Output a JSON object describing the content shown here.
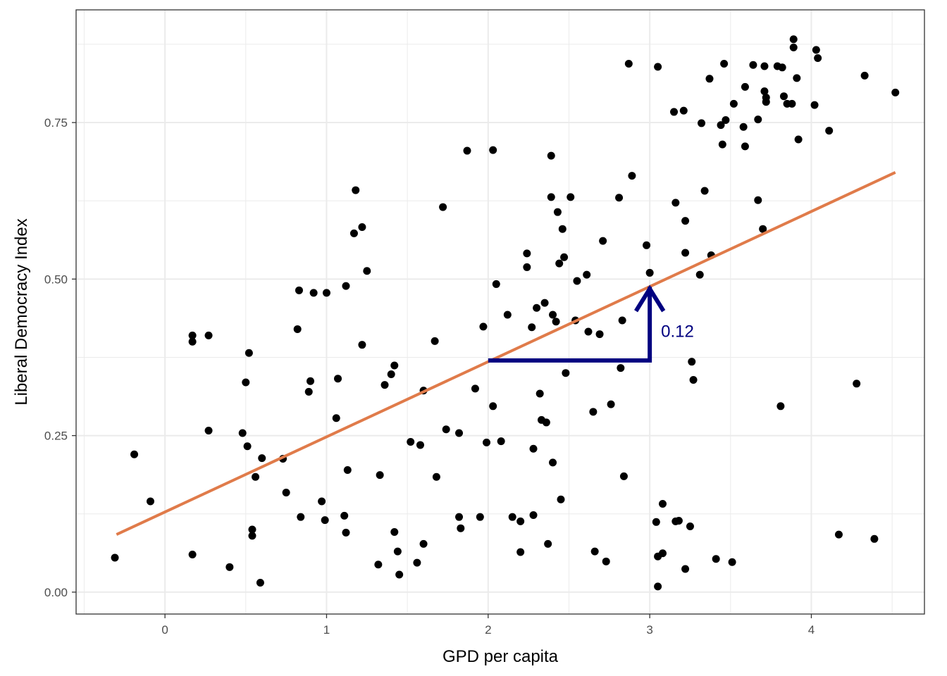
{
  "chart_data": {
    "type": "scatter",
    "xlabel": "GPD per capita",
    "ylabel": "Liberal Democracy Index",
    "xlim": [
      -0.55,
      4.7
    ],
    "ylim": [
      -0.035,
      0.93
    ],
    "x_ticks": [
      0,
      1,
      2,
      3,
      4
    ],
    "x_tick_labels": [
      "0",
      "1",
      "2",
      "3",
      "4"
    ],
    "y_ticks": [
      0,
      0.25,
      0.5,
      0.75
    ],
    "y_tick_labels": [
      "0.00",
      "0.25",
      "0.50",
      "0.75"
    ],
    "grid": true,
    "colors": {
      "points": "#000000",
      "fit_line": "#e07b4a",
      "annotation": "#000080",
      "grid": "#ebebeb"
    },
    "fit_line": {
      "intercept": 0.128,
      "slope": 0.12,
      "x_range": [
        -0.3,
        4.52
      ]
    },
    "annotation": {
      "label": "0.12",
      "run_from": [
        2,
        0.37
      ],
      "run_to": [
        3,
        0.37
      ],
      "rise_to": [
        3,
        0.49
      ]
    },
    "points": [
      [
        -0.31,
        0.055
      ],
      [
        -0.19,
        0.22
      ],
      [
        -0.09,
        0.145
      ],
      [
        0.17,
        0.41
      ],
      [
        0.17,
        0.4
      ],
      [
        0.17,
        0.06
      ],
      [
        0.27,
        0.41
      ],
      [
        0.27,
        0.258
      ],
      [
        0.4,
        0.04
      ],
      [
        0.48,
        0.254
      ],
      [
        0.5,
        0.335
      ],
      [
        0.51,
        0.233
      ],
      [
        0.52,
        0.382
      ],
      [
        0.54,
        0.1
      ],
      [
        0.54,
        0.09
      ],
      [
        0.56,
        0.184
      ],
      [
        0.59,
        0.015
      ],
      [
        0.6,
        0.214
      ],
      [
        0.73,
        0.213
      ],
      [
        0.75,
        0.159
      ],
      [
        0.82,
        0.42
      ],
      [
        0.83,
        0.482
      ],
      [
        0.84,
        0.12
      ],
      [
        0.89,
        0.32
      ],
      [
        0.9,
        0.337
      ],
      [
        0.92,
        0.478
      ],
      [
        0.97,
        0.145
      ],
      [
        0.99,
        0.115
      ],
      [
        1.0,
        0.478
      ],
      [
        1.06,
        0.278
      ],
      [
        1.07,
        0.341
      ],
      [
        1.11,
        0.122
      ],
      [
        1.12,
        0.095
      ],
      [
        1.12,
        0.489
      ],
      [
        1.13,
        0.195
      ],
      [
        1.17,
        0.573
      ],
      [
        1.18,
        0.642
      ],
      [
        1.22,
        0.583
      ],
      [
        1.22,
        0.395
      ],
      [
        1.25,
        0.513
      ],
      [
        1.32,
        0.044
      ],
      [
        1.33,
        0.187
      ],
      [
        1.36,
        0.331
      ],
      [
        1.4,
        0.348
      ],
      [
        1.42,
        0.362
      ],
      [
        1.42,
        0.096
      ],
      [
        1.44,
        0.065
      ],
      [
        1.45,
        0.028
      ],
      [
        1.52,
        0.24
      ],
      [
        1.56,
        0.047
      ],
      [
        1.58,
        0.235
      ],
      [
        1.6,
        0.077
      ],
      [
        1.6,
        0.322
      ],
      [
        1.67,
        0.401
      ],
      [
        1.68,
        0.184
      ],
      [
        1.72,
        0.615
      ],
      [
        1.74,
        0.26
      ],
      [
        1.82,
        0.254
      ],
      [
        1.82,
        0.12
      ],
      [
        1.83,
        0.102
      ],
      [
        1.87,
        0.705
      ],
      [
        1.92,
        0.325
      ],
      [
        1.95,
        0.12
      ],
      [
        1.97,
        0.424
      ],
      [
        1.99,
        0.239
      ],
      [
        2.03,
        0.706
      ],
      [
        2.03,
        0.297
      ],
      [
        2.05,
        0.492
      ],
      [
        2.08,
        0.241
      ],
      [
        2.12,
        0.443
      ],
      [
        2.15,
        0.12
      ],
      [
        2.2,
        0.064
      ],
      [
        2.2,
        0.113
      ],
      [
        2.24,
        0.541
      ],
      [
        2.24,
        0.519
      ],
      [
        2.27,
        0.423
      ],
      [
        2.28,
        0.229
      ],
      [
        2.28,
        0.123
      ],
      [
        2.3,
        0.454
      ],
      [
        2.32,
        0.317
      ],
      [
        2.33,
        0.275
      ],
      [
        2.35,
        0.462
      ],
      [
        2.36,
        0.271
      ],
      [
        2.37,
        0.077
      ],
      [
        2.39,
        0.697
      ],
      [
        2.39,
        0.631
      ],
      [
        2.4,
        0.443
      ],
      [
        2.4,
        0.207
      ],
      [
        2.42,
        0.432
      ],
      [
        2.43,
        0.607
      ],
      [
        2.44,
        0.525
      ],
      [
        2.45,
        0.148
      ],
      [
        2.46,
        0.58
      ],
      [
        2.47,
        0.535
      ],
      [
        2.48,
        0.35
      ],
      [
        2.51,
        0.631
      ],
      [
        2.54,
        0.434
      ],
      [
        2.55,
        0.497
      ],
      [
        2.61,
        0.507
      ],
      [
        2.62,
        0.416
      ],
      [
        2.65,
        0.288
      ],
      [
        2.66,
        0.065
      ],
      [
        2.69,
        0.412
      ],
      [
        2.71,
        0.561
      ],
      [
        2.73,
        0.049
      ],
      [
        2.76,
        0.3
      ],
      [
        2.81,
        0.63
      ],
      [
        2.82,
        0.358
      ],
      [
        2.83,
        0.434
      ],
      [
        2.84,
        0.185
      ],
      [
        2.87,
        0.844
      ],
      [
        2.89,
        0.665
      ],
      [
        2.98,
        0.554
      ],
      [
        3.0,
        0.51
      ],
      [
        3.04,
        0.112
      ],
      [
        3.05,
        0.839
      ],
      [
        3.05,
        0.057
      ],
      [
        3.05,
        0.009
      ],
      [
        3.08,
        0.062
      ],
      [
        3.08,
        0.141
      ],
      [
        3.15,
        0.767
      ],
      [
        3.16,
        0.622
      ],
      [
        3.16,
        0.113
      ],
      [
        3.18,
        0.114
      ],
      [
        3.21,
        0.769
      ],
      [
        3.22,
        0.593
      ],
      [
        3.22,
        0.542
      ],
      [
        3.22,
        0.037
      ],
      [
        3.25,
        0.105
      ],
      [
        3.26,
        0.368
      ],
      [
        3.27,
        0.339
      ],
      [
        3.31,
        0.507
      ],
      [
        3.32,
        0.749
      ],
      [
        3.34,
        0.641
      ],
      [
        3.37,
        0.82
      ],
      [
        3.38,
        0.538
      ],
      [
        3.41,
        0.053
      ],
      [
        3.44,
        0.746
      ],
      [
        3.45,
        0.715
      ],
      [
        3.46,
        0.844
      ],
      [
        3.47,
        0.754
      ],
      [
        3.51,
        0.048
      ],
      [
        3.52,
        0.78
      ],
      [
        3.58,
        0.743
      ],
      [
        3.59,
        0.712
      ],
      [
        3.59,
        0.807
      ],
      [
        3.64,
        0.842
      ],
      [
        3.67,
        0.626
      ],
      [
        3.67,
        0.755
      ],
      [
        3.7,
        0.58
      ],
      [
        3.71,
        0.84
      ],
      [
        3.71,
        0.8
      ],
      [
        3.72,
        0.79
      ],
      [
        3.72,
        0.783
      ],
      [
        3.79,
        0.84
      ],
      [
        3.81,
        0.297
      ],
      [
        3.82,
        0.838
      ],
      [
        3.83,
        0.792
      ],
      [
        3.85,
        0.78
      ],
      [
        3.88,
        0.78
      ],
      [
        3.89,
        0.883
      ],
      [
        3.89,
        0.87
      ],
      [
        3.91,
        0.821
      ],
      [
        3.92,
        0.723
      ],
      [
        4.02,
        0.778
      ],
      [
        4.03,
        0.866
      ],
      [
        4.04,
        0.853
      ],
      [
        4.11,
        0.737
      ],
      [
        4.17,
        0.092
      ],
      [
        4.28,
        0.333
      ],
      [
        4.33,
        0.825
      ],
      [
        4.39,
        0.085
      ],
      [
        4.52,
        0.798
      ]
    ]
  }
}
